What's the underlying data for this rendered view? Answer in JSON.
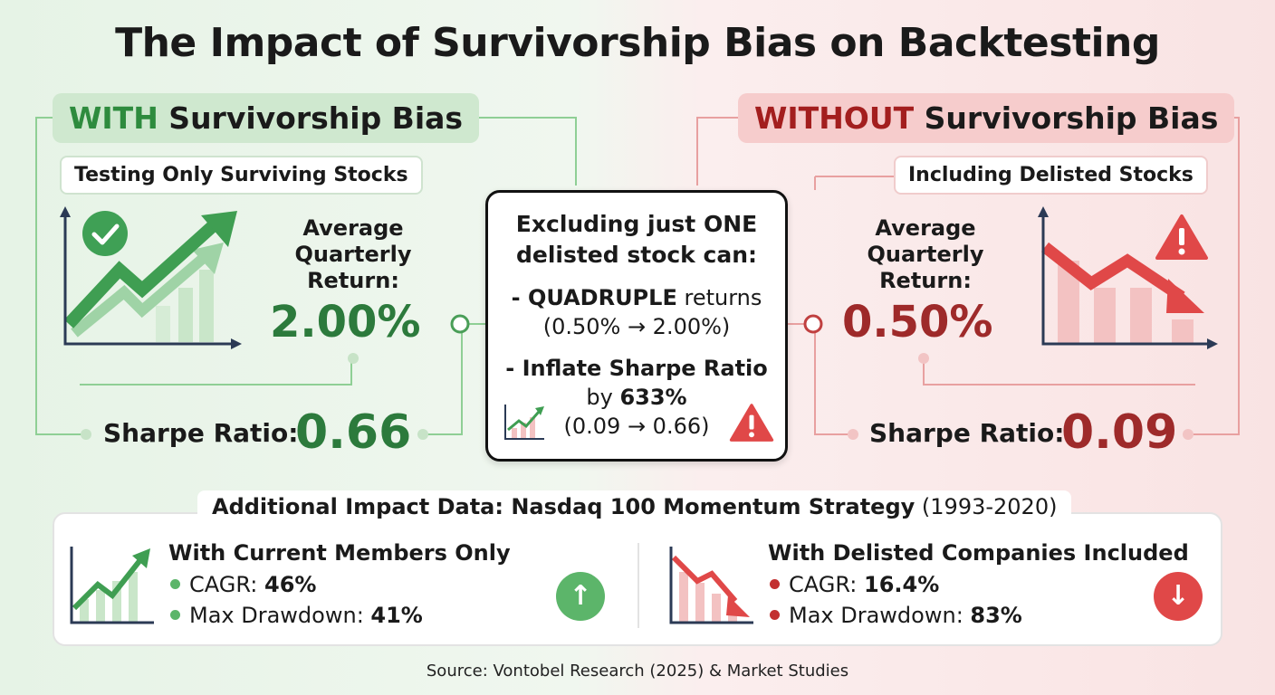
{
  "title": "The Impact of Survivorship Bias on Backtesting",
  "with_panel": {
    "keyword": "WITH",
    "heading_rest": " Survivorship Bias",
    "subtitle": "Testing Only Surviving Stocks",
    "return_label_1": "Average",
    "return_label_2": "Quarterly",
    "return_label_3": "Return:",
    "return_value": "2.00%",
    "sharpe_label": "Sharpe Ratio:",
    "sharpe_value": "0.66",
    "color": "#2c7a3c"
  },
  "without_panel": {
    "keyword": "WITHOUT",
    "heading_rest": " Survivorship Bias",
    "subtitle": "Including Delisted Stocks",
    "return_label_1": "Average",
    "return_label_2": "Quarterly",
    "return_label_3": "Return:",
    "return_value": "0.50%",
    "sharpe_label": "Sharpe Ratio:",
    "sharpe_value": "0.09",
    "color": "#9e2a2a"
  },
  "center": {
    "line1": "Excluding just ONE",
    "line2": "delisted stock can:",
    "b1_bold": "- QUADRUPLE",
    "b1_rest": " returns",
    "b1_detail": "(0.50% → 2.00%)",
    "b2_bold": "- Inflate Sharpe Ratio",
    "b2_by": "by ",
    "b2_pct": "633%",
    "b2_detail": "(0.09 → 0.66)"
  },
  "bottom": {
    "title_bold": "Additional Impact Data: Nasdaq 100 Momentum Strategy",
    "title_rest": " (1993-2020)",
    "left": {
      "heading": "With Current Members Only",
      "cagr_label": "CAGR: ",
      "cagr_value": "46%",
      "dd_label": "Max Drawdown: ",
      "dd_value": "41%",
      "arrow": "↑"
    },
    "right": {
      "heading": "With Delisted Companies Included",
      "cagr_label": "CAGR: ",
      "cagr_value": "16.4%",
      "dd_label": "Max Drawdown: ",
      "dd_value": "83%",
      "arrow": "↓"
    }
  },
  "source": "Source: Vontobel Research (2025) & Market Studies",
  "icons": [
    "check-circle-icon",
    "rising-chart-icon",
    "falling-chart-icon",
    "warning-icon",
    "up-arrow-icon",
    "down-arrow-icon"
  ],
  "colors": {
    "green": "#2c7a3c",
    "light_green": "#5cb56a",
    "red": "#9e2a2a",
    "alert_red": "#e04848"
  }
}
